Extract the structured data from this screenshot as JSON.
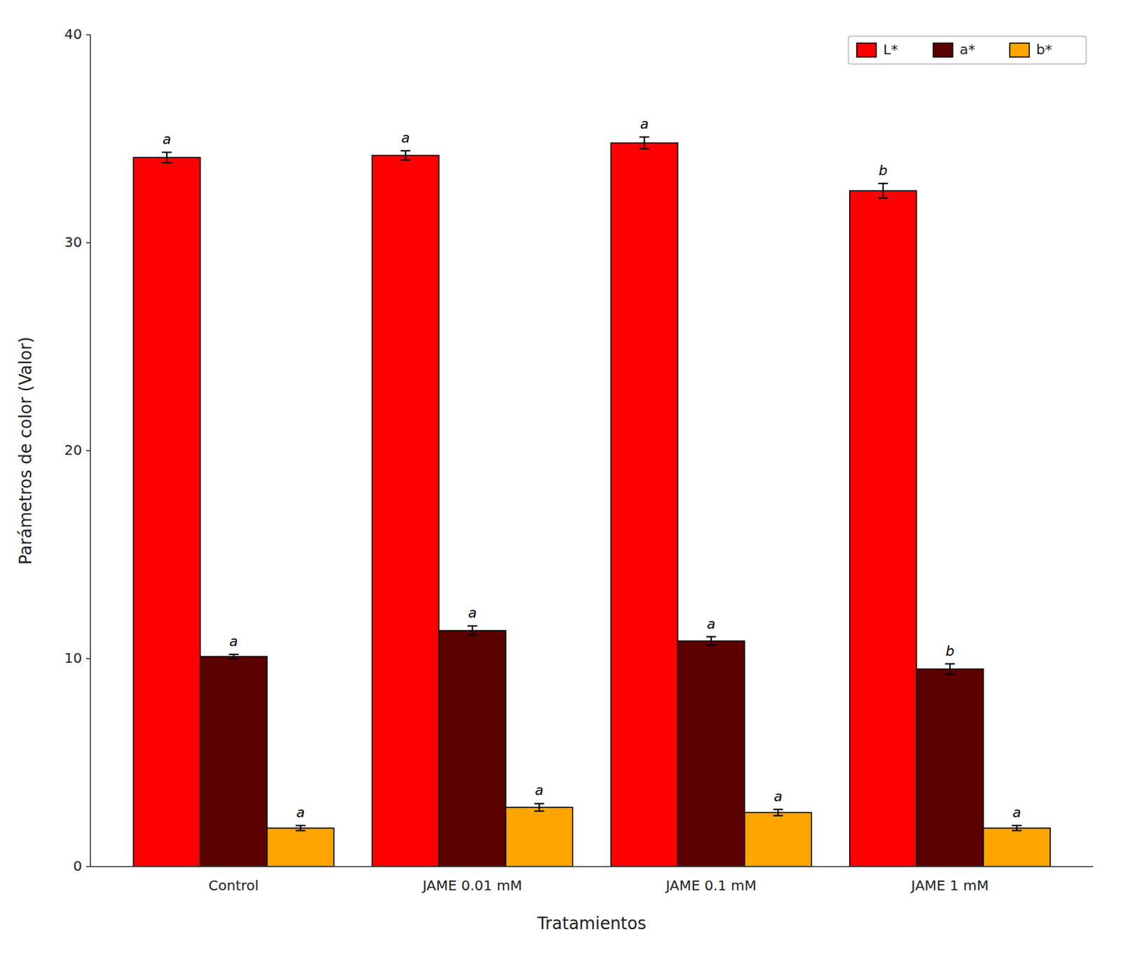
{
  "chart_data": {
    "type": "bar",
    "categories": [
      "Control",
      "JAME 0.01 mM",
      "JAME 0.1 mM",
      "JAME 1 mM"
    ],
    "series": [
      {
        "name": "L*",
        "color": "#FF0000",
        "values": [
          34.1,
          34.2,
          34.8,
          32.5
        ],
        "errors": [
          0.25,
          0.22,
          0.28,
          0.35
        ],
        "letters": [
          "a",
          "a",
          "a",
          "b"
        ]
      },
      {
        "name": "a*",
        "color": "#5C0000",
        "values": [
          10.1,
          11.35,
          10.85,
          9.5
        ],
        "errors": [
          0.1,
          0.22,
          0.2,
          0.25
        ],
        "letters": [
          "a",
          "a",
          "a",
          "b"
        ]
      },
      {
        "name": "b*",
        "color": "#FFA500",
        "values": [
          1.85,
          2.85,
          2.6,
          1.85
        ],
        "errors": [
          0.12,
          0.18,
          0.15,
          0.12
        ],
        "letters": [
          "a",
          "a",
          "a",
          "a"
        ]
      }
    ],
    "xlabel": "Tratamientos",
    "ylabel": "Parámetros de color (Valor)",
    "ylim": [
      0,
      40
    ],
    "yticks": [
      0,
      10,
      20,
      30,
      40
    ],
    "grid": false,
    "legend": "upper right"
  }
}
